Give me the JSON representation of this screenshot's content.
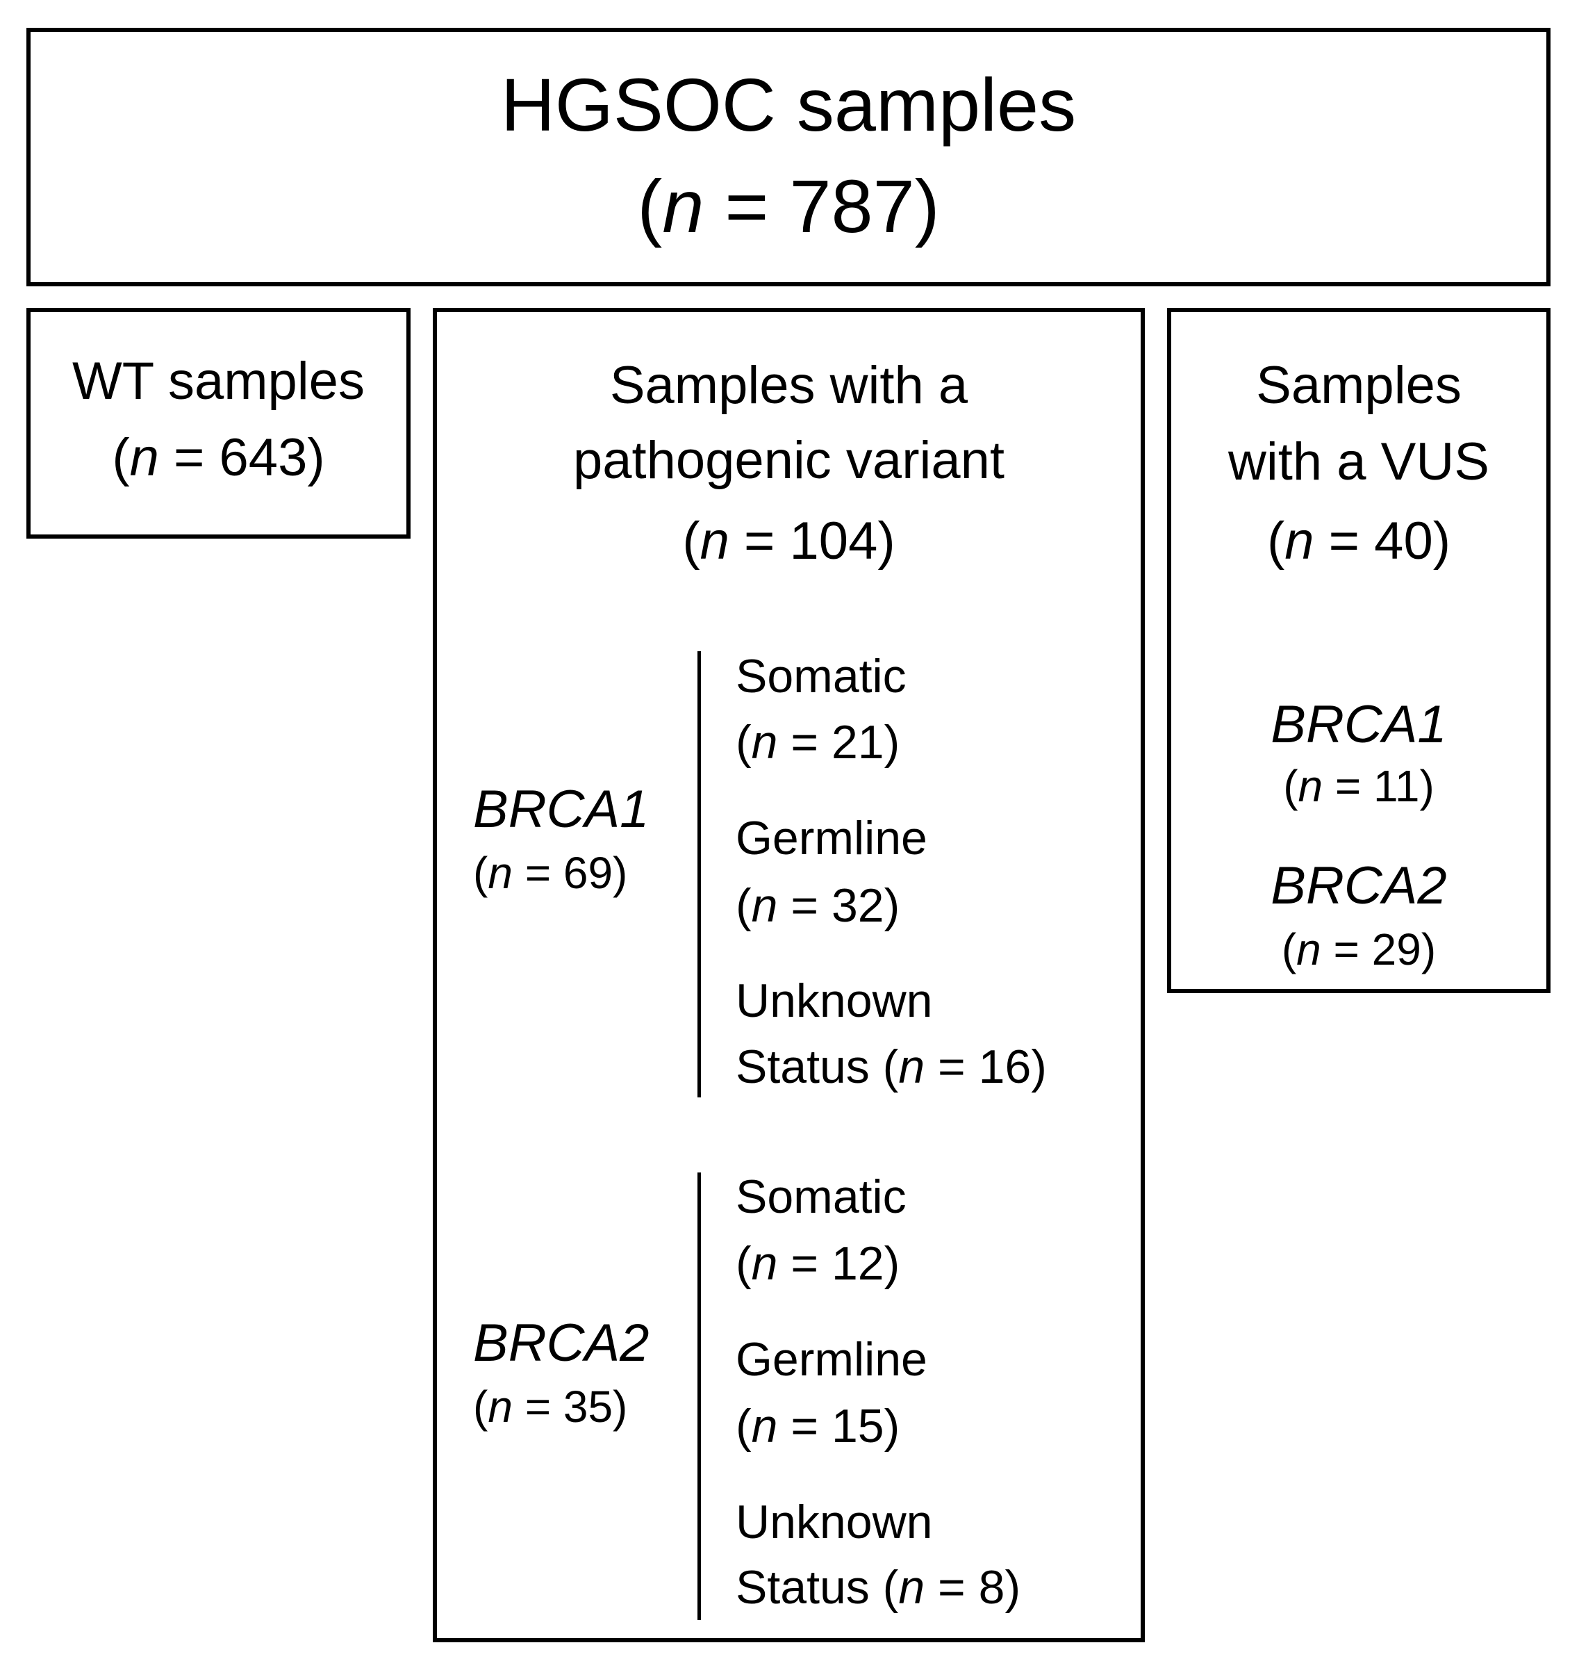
{
  "top": {
    "title": "HGSOC samples",
    "count_prefix": "(",
    "n": "n",
    "count_suffix": " = 787)"
  },
  "wt": {
    "title": "WT samples",
    "count_prefix": "(",
    "n": "n",
    "count_suffix": " = 643)"
  },
  "pathogenic": {
    "line1": "Samples with a",
    "line2": "pathogenic variant",
    "count_prefix": "(",
    "n": "n",
    "count_suffix": " = 104)",
    "groups": [
      {
        "gene": "BRCA1",
        "count_prefix": "(",
        "n": "n",
        "count_suffix": " = 69)",
        "subs": [
          {
            "label": "Somatic",
            "count_prefix": "(",
            "n": "n",
            "count_suffix": " = 21)"
          },
          {
            "label": "Germline",
            "count_prefix": "(",
            "n": "n",
            "count_suffix": " = 32)"
          },
          {
            "label": "Unknown",
            "label2": "Status (",
            "n": "n",
            "count_suffix": " = 16)"
          }
        ]
      },
      {
        "gene": "BRCA2",
        "count_prefix": "(",
        "n": "n",
        "count_suffix": " = 35)",
        "subs": [
          {
            "label": "Somatic",
            "count_prefix": "(",
            "n": "n",
            "count_suffix": " = 12)"
          },
          {
            "label": "Germline",
            "count_prefix": "(",
            "n": "n",
            "count_suffix": " = 15)"
          },
          {
            "label": "Unknown",
            "label2": "Status (",
            "n": "n",
            "count_suffix": " = 8)"
          }
        ]
      }
    ]
  },
  "vus": {
    "line1": "Samples",
    "line2": "with a VUS",
    "count_prefix": "(",
    "n": "n",
    "count_suffix": " = 40)",
    "genes": [
      {
        "gene": "BRCA1",
        "count_prefix": "(",
        "n": "n",
        "count_suffix": " = 11)"
      },
      {
        "gene": "BRCA2",
        "count_prefix": "(",
        "n": "n",
        "count_suffix": " = 29)"
      }
    ]
  }
}
